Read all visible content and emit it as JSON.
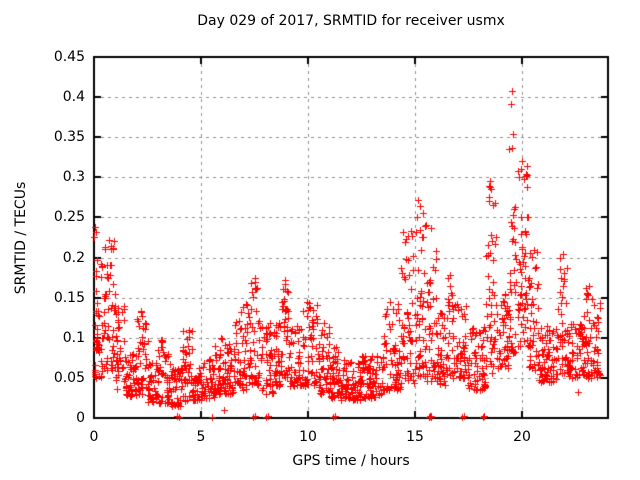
{
  "page": {
    "background": "#ffffff",
    "text_color": "#000000"
  },
  "chart_data": {
    "type": "scatter",
    "title": "Day 029 of 2017, SRMTID for receiver usmx",
    "xlabel": "GPS time / hours",
    "ylabel": "SRMTID / TECUs",
    "xlim": [
      0,
      24
    ],
    "ylim": [
      0,
      0.45
    ],
    "xticks": [
      0,
      5,
      10,
      15,
      20
    ],
    "yticks": [
      0,
      0.05,
      0.1,
      0.15,
      0.2,
      0.25,
      0.3,
      0.35,
      0.4,
      0.45
    ],
    "grid": "dashed",
    "grid_color": "#909090",
    "border_color": "#000000",
    "legend": "none",
    "marker": "plus",
    "marker_color": "#ff0000",
    "seed": 20170129,
    "envelope_segments_comment": "each segment = [t_start_h, t_end_h, min_value_TECU, max_value_TECU, point_count] describing the dense scatter cloud",
    "envelope": [
      [
        0.0,
        0.15,
        0.05,
        0.24,
        25
      ],
      [
        0.15,
        0.5,
        0.05,
        0.2,
        30
      ],
      [
        0.5,
        1.0,
        0.06,
        0.225,
        45
      ],
      [
        1.0,
        1.5,
        0.035,
        0.14,
        40
      ],
      [
        1.5,
        2.0,
        0.028,
        0.08,
        40
      ],
      [
        2.0,
        2.5,
        0.03,
        0.135,
        40
      ],
      [
        2.5,
        3.0,
        0.02,
        0.07,
        40
      ],
      [
        3.0,
        3.6,
        0.018,
        0.1,
        45
      ],
      [
        3.6,
        4.1,
        0.015,
        0.065,
        40
      ],
      [
        4.1,
        4.6,
        0.02,
        0.11,
        40
      ],
      [
        4.6,
        5.1,
        0.022,
        0.062,
        40
      ],
      [
        5.1,
        5.6,
        0.025,
        0.075,
        40
      ],
      [
        5.6,
        6.1,
        0.03,
        0.1,
        40
      ],
      [
        6.1,
        6.6,
        0.03,
        0.095,
        40
      ],
      [
        6.6,
        7.2,
        0.035,
        0.145,
        45
      ],
      [
        7.2,
        7.8,
        0.04,
        0.17,
        50
      ],
      [
        7.8,
        8.35,
        0.03,
        0.12,
        40
      ],
      [
        8.35,
        8.75,
        0.04,
        0.12,
        35
      ],
      [
        8.75,
        9.1,
        0.05,
        0.17,
        35
      ],
      [
        9.1,
        9.7,
        0.04,
        0.12,
        45
      ],
      [
        9.7,
        10.45,
        0.04,
        0.145,
        55
      ],
      [
        10.45,
        11.0,
        0.03,
        0.12,
        45
      ],
      [
        11.0,
        11.55,
        0.025,
        0.095,
        45
      ],
      [
        11.55,
        12.5,
        0.022,
        0.075,
        70
      ],
      [
        12.5,
        13.5,
        0.025,
        0.08,
        75
      ],
      [
        13.5,
        14.3,
        0.035,
        0.145,
        60
      ],
      [
        14.3,
        15.0,
        0.04,
        0.235,
        55
      ],
      [
        15.0,
        15.4,
        0.05,
        0.272,
        40
      ],
      [
        15.4,
        16.0,
        0.045,
        0.24,
        45
      ],
      [
        16.0,
        16.5,
        0.04,
        0.15,
        40
      ],
      [
        16.5,
        16.85,
        0.05,
        0.18,
        30
      ],
      [
        16.85,
        17.45,
        0.05,
        0.145,
        45
      ],
      [
        17.45,
        18.3,
        0.035,
        0.115,
        60
      ],
      [
        18.3,
        18.85,
        0.055,
        0.295,
        45
      ],
      [
        18.85,
        19.35,
        0.06,
        0.155,
        40
      ],
      [
        19.35,
        19.75,
        0.08,
        0.3,
        35
      ],
      [
        19.75,
        20.3,
        0.09,
        0.32,
        55
      ],
      [
        20.3,
        20.75,
        0.06,
        0.22,
        40
      ],
      [
        20.75,
        21.65,
        0.045,
        0.115,
        70
      ],
      [
        21.65,
        22.15,
        0.055,
        0.21,
        40
      ],
      [
        22.15,
        22.85,
        0.05,
        0.12,
        55
      ],
      [
        22.85,
        23.15,
        0.05,
        0.165,
        30
      ],
      [
        23.15,
        23.65,
        0.05,
        0.155,
        40
      ]
    ],
    "notable_points_comment": "individually visible extreme points [t_hours, value_TECU]",
    "notable_points": [
      [
        19.5,
        0.408
      ],
      [
        19.45,
        0.392
      ],
      [
        19.55,
        0.354
      ],
      [
        19.52,
        0.337
      ],
      [
        19.4,
        0.335
      ],
      [
        20.0,
        0.32
      ],
      [
        19.95,
        0.31
      ],
      [
        18.5,
        0.295
      ],
      [
        18.55,
        0.285
      ],
      [
        18.45,
        0.27
      ],
      [
        15.15,
        0.272
      ],
      [
        15.2,
        0.264
      ],
      [
        15.1,
        0.25
      ],
      [
        15.5,
        0.24
      ],
      [
        14.8,
        0.233
      ],
      [
        14.85,
        0.227
      ],
      [
        0.05,
        0.238
      ],
      [
        0.7,
        0.222
      ],
      [
        0.8,
        0.215
      ],
      [
        2.2,
        0.133
      ],
      [
        13.8,
        0.145
      ],
      [
        7.5,
        0.175
      ],
      [
        8.9,
        0.172
      ],
      [
        16.6,
        0.178
      ],
      [
        21.9,
        0.205
      ],
      [
        22.95,
        0.162
      ],
      [
        22.6,
        0.033
      ],
      [
        6.05,
        0.01
      ]
    ],
    "on_axis_points_comment": "red marks sitting on the x-axis (value ~ 0)",
    "on_axis_points": [
      [
        3.88,
        0.002
      ],
      [
        3.95,
        0.001
      ],
      [
        5.52,
        0.001
      ],
      [
        7.42,
        0.001
      ],
      [
        7.5,
        0.002
      ],
      [
        8.05,
        0.001
      ],
      [
        8.12,
        0.002
      ],
      [
        11.18,
        0.001
      ],
      [
        11.25,
        0.002
      ],
      [
        15.66,
        0.001
      ],
      [
        15.7,
        0.003
      ],
      [
        15.72,
        0.002
      ],
      [
        15.75,
        0.001
      ],
      [
        17.2,
        0.001
      ],
      [
        17.26,
        0.002
      ],
      [
        18.15,
        0.001
      ],
      [
        18.22,
        0.002
      ]
    ]
  }
}
